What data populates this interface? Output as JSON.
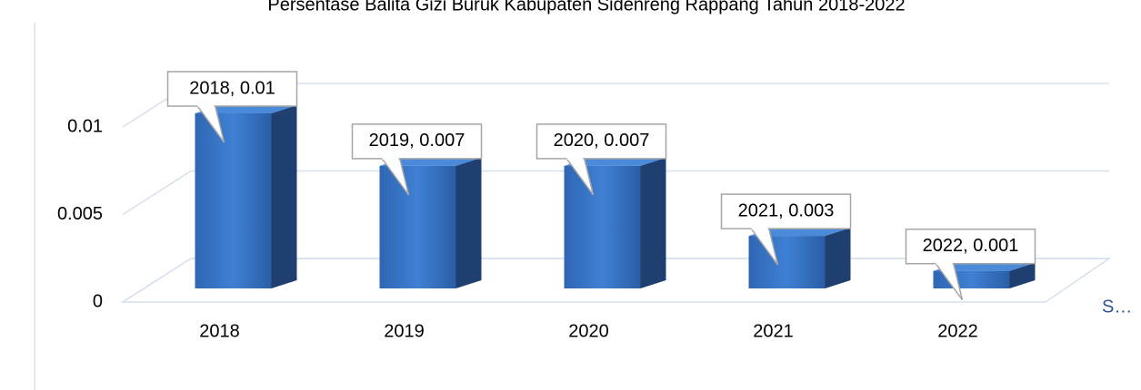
{
  "chart_data": {
    "type": "bar3d",
    "title": "Persentase Balita Gizi Buruk Kabupaten Sidenreng Rappang Tahun 2018-2022",
    "categories": [
      "2018",
      "2019",
      "2020",
      "2021",
      "2022"
    ],
    "series": [
      {
        "name": "S…",
        "color": "#3a78c9",
        "values": [
          0.01,
          0.007,
          0.007,
          0.003,
          0.001
        ],
        "value_labels": [
          "2018, 0.01",
          "2019, 0.007",
          "2020, 0.007",
          "2021, 0.003",
          "2022, 0.001"
        ]
      }
    ],
    "ylim": [
      0,
      0.01
    ],
    "yticks": [
      0,
      0.005,
      0.01
    ],
    "grid": true,
    "legend": "right"
  }
}
